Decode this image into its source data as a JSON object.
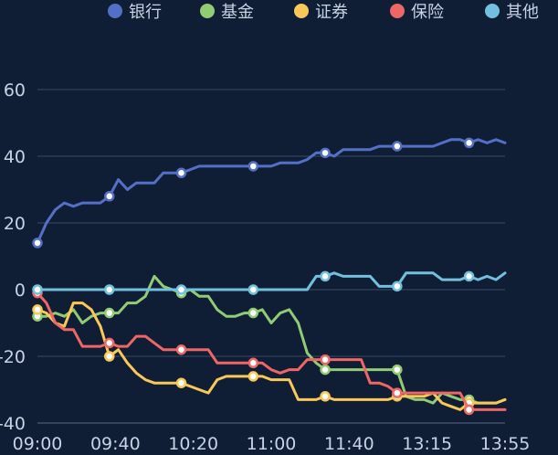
{
  "chart_data": {
    "type": "line",
    "ylim": [
      -40,
      60
    ],
    "yticks": [
      "-40",
      "-20",
      "0",
      "20",
      "40",
      "60"
    ],
    "xtick_labels": [
      "09:00",
      "09:40",
      "10:20",
      "11:00",
      "11:40",
      "13:15",
      "13:55"
    ],
    "grid": true,
    "legend_position": "top-right",
    "series": [
      {
        "name": "银行",
        "color": "#5470c6",
        "values": [
          14,
          20,
          24,
          26,
          25,
          26,
          26,
          26,
          28,
          33,
          30,
          32,
          32,
          32,
          35,
          35,
          35,
          36,
          37,
          37,
          37,
          37,
          37,
          37,
          37,
          37,
          37,
          38,
          38,
          38,
          39,
          41,
          41,
          40,
          42,
          42,
          42,
          42,
          43,
          43,
          43,
          43,
          43,
          43,
          43,
          44,
          45,
          45,
          44,
          45,
          44,
          45,
          44
        ],
        "marker_indices": [
          0,
          8,
          16,
          24,
          32,
          40,
          48
        ]
      },
      {
        "name": "基金",
        "color": "#91cc75",
        "values": [
          -8,
          -8,
          -7,
          -8,
          -6,
          -10,
          -8,
          -7,
          -7,
          -7,
          -4,
          -4,
          -2,
          4,
          1,
          0,
          -1,
          0,
          -2,
          -2,
          -6,
          -8,
          -8,
          -7,
          -7,
          -6,
          -10,
          -7,
          -6,
          -10,
          -19,
          -22,
          -24,
          -24,
          -24,
          -24,
          -24,
          -24,
          -24,
          -24,
          -24,
          -32,
          -33,
          -33,
          -34,
          -31,
          -32,
          -33,
          -33,
          -34,
          -34,
          -34,
          -33
        ],
        "marker_indices": [
          0,
          8,
          16,
          24,
          32,
          40,
          48
        ]
      },
      {
        "name": "证券",
        "color": "#fac858",
        "values": [
          -6,
          -7,
          -10,
          -11,
          -4,
          -4,
          -6,
          -11,
          -20,
          -18,
          -22,
          -25,
          -27,
          -28,
          -28,
          -28,
          -28,
          -29,
          -30,
          -31,
          -27,
          -26,
          -26,
          -26,
          -26,
          -26,
          -27,
          -27,
          -27,
          -33,
          -33,
          -33,
          -32,
          -33,
          -33,
          -33,
          -33,
          -33,
          -33,
          -33,
          -32,
          -32,
          -32,
          -32,
          -31,
          -34,
          -35,
          -36,
          -34,
          -34,
          -34,
          -34,
          -33
        ],
        "marker_indices": [
          0,
          8,
          16,
          24,
          32,
          40,
          48
        ]
      },
      {
        "name": "保险",
        "color": "#ee6666",
        "values": [
          -1,
          -4,
          -10,
          -12,
          -12,
          -17,
          -17,
          -17,
          -16,
          -17,
          -17,
          -14,
          -14,
          -16,
          -18,
          -18,
          -18,
          -18,
          -18,
          -18,
          -22,
          -22,
          -22,
          -22,
          -22,
          -22,
          -24,
          -25,
          -24,
          -24,
          -21,
          -21,
          -21,
          -21,
          -21,
          -21,
          -21,
          -28,
          -28,
          -29,
          -31,
          -31,
          -31,
          -31,
          -31,
          -31,
          -31,
          -31,
          -36,
          -36,
          -36,
          -36,
          -36
        ],
        "marker_indices": [
          0,
          8,
          16,
          24,
          32,
          40,
          48
        ]
      },
      {
        "name": "其他",
        "color": "#73c0de",
        "values": [
          0,
          0,
          0,
          0,
          0,
          0,
          0,
          0,
          0,
          0,
          0,
          0,
          0,
          0,
          0,
          0,
          0,
          0,
          0,
          0,
          0,
          0,
          0,
          0,
          0,
          0,
          0,
          0,
          0,
          0,
          0,
          4,
          4,
          5,
          4,
          4,
          4,
          4,
          1,
          1,
          1,
          5,
          5,
          5,
          5,
          3,
          3,
          3,
          4,
          3,
          4,
          3,
          5
        ],
        "marker_indices": [
          0,
          8,
          16,
          24,
          32,
          40,
          48
        ]
      }
    ]
  }
}
